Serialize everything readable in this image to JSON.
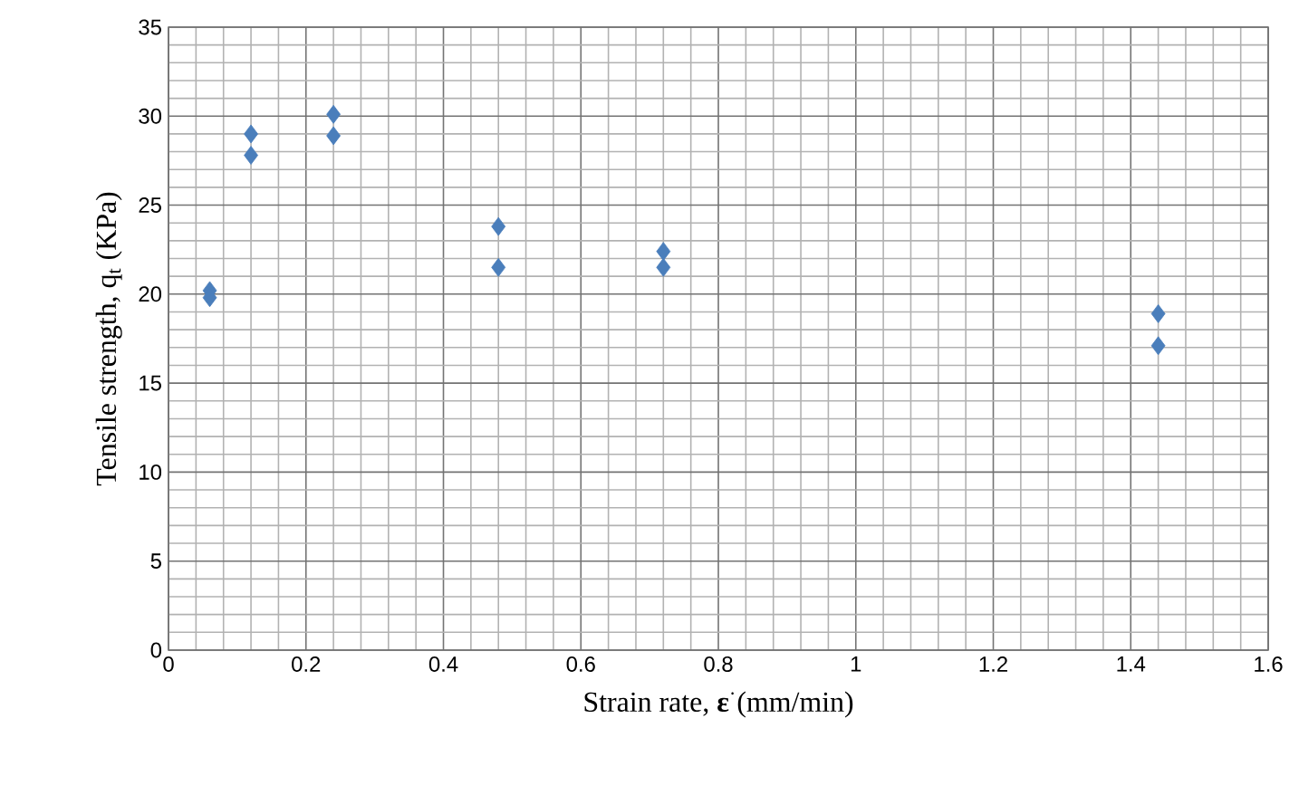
{
  "chart_data": {
    "type": "scatter",
    "xlabel": "Strain rate, **ε**$^{·}$(mm/min)",
    "ylabel": "Tensile strength, q$_{t}$ (KPa)",
    "x": [
      0.06,
      0.06,
      0.12,
      0.12,
      0.24,
      0.24,
      0.48,
      0.48,
      0.72,
      0.72,
      1.44,
      1.44
    ],
    "values": [
      20.2,
      19.8,
      29.0,
      27.8,
      30.1,
      28.9,
      23.8,
      21.5,
      22.4,
      21.5,
      18.9,
      17.1
    ],
    "color": "#4a7ebb",
    "marker": "diamond",
    "xlim": [
      0,
      1.6
    ],
    "xticks": [
      0,
      0.2,
      0.4,
      0.6,
      0.8,
      1,
      1.2,
      1.4,
      1.6
    ],
    "ylim": [
      0,
      35
    ],
    "yticks": [
      0,
      5,
      10,
      15,
      20,
      25,
      30,
      35
    ],
    "grid": true
  }
}
